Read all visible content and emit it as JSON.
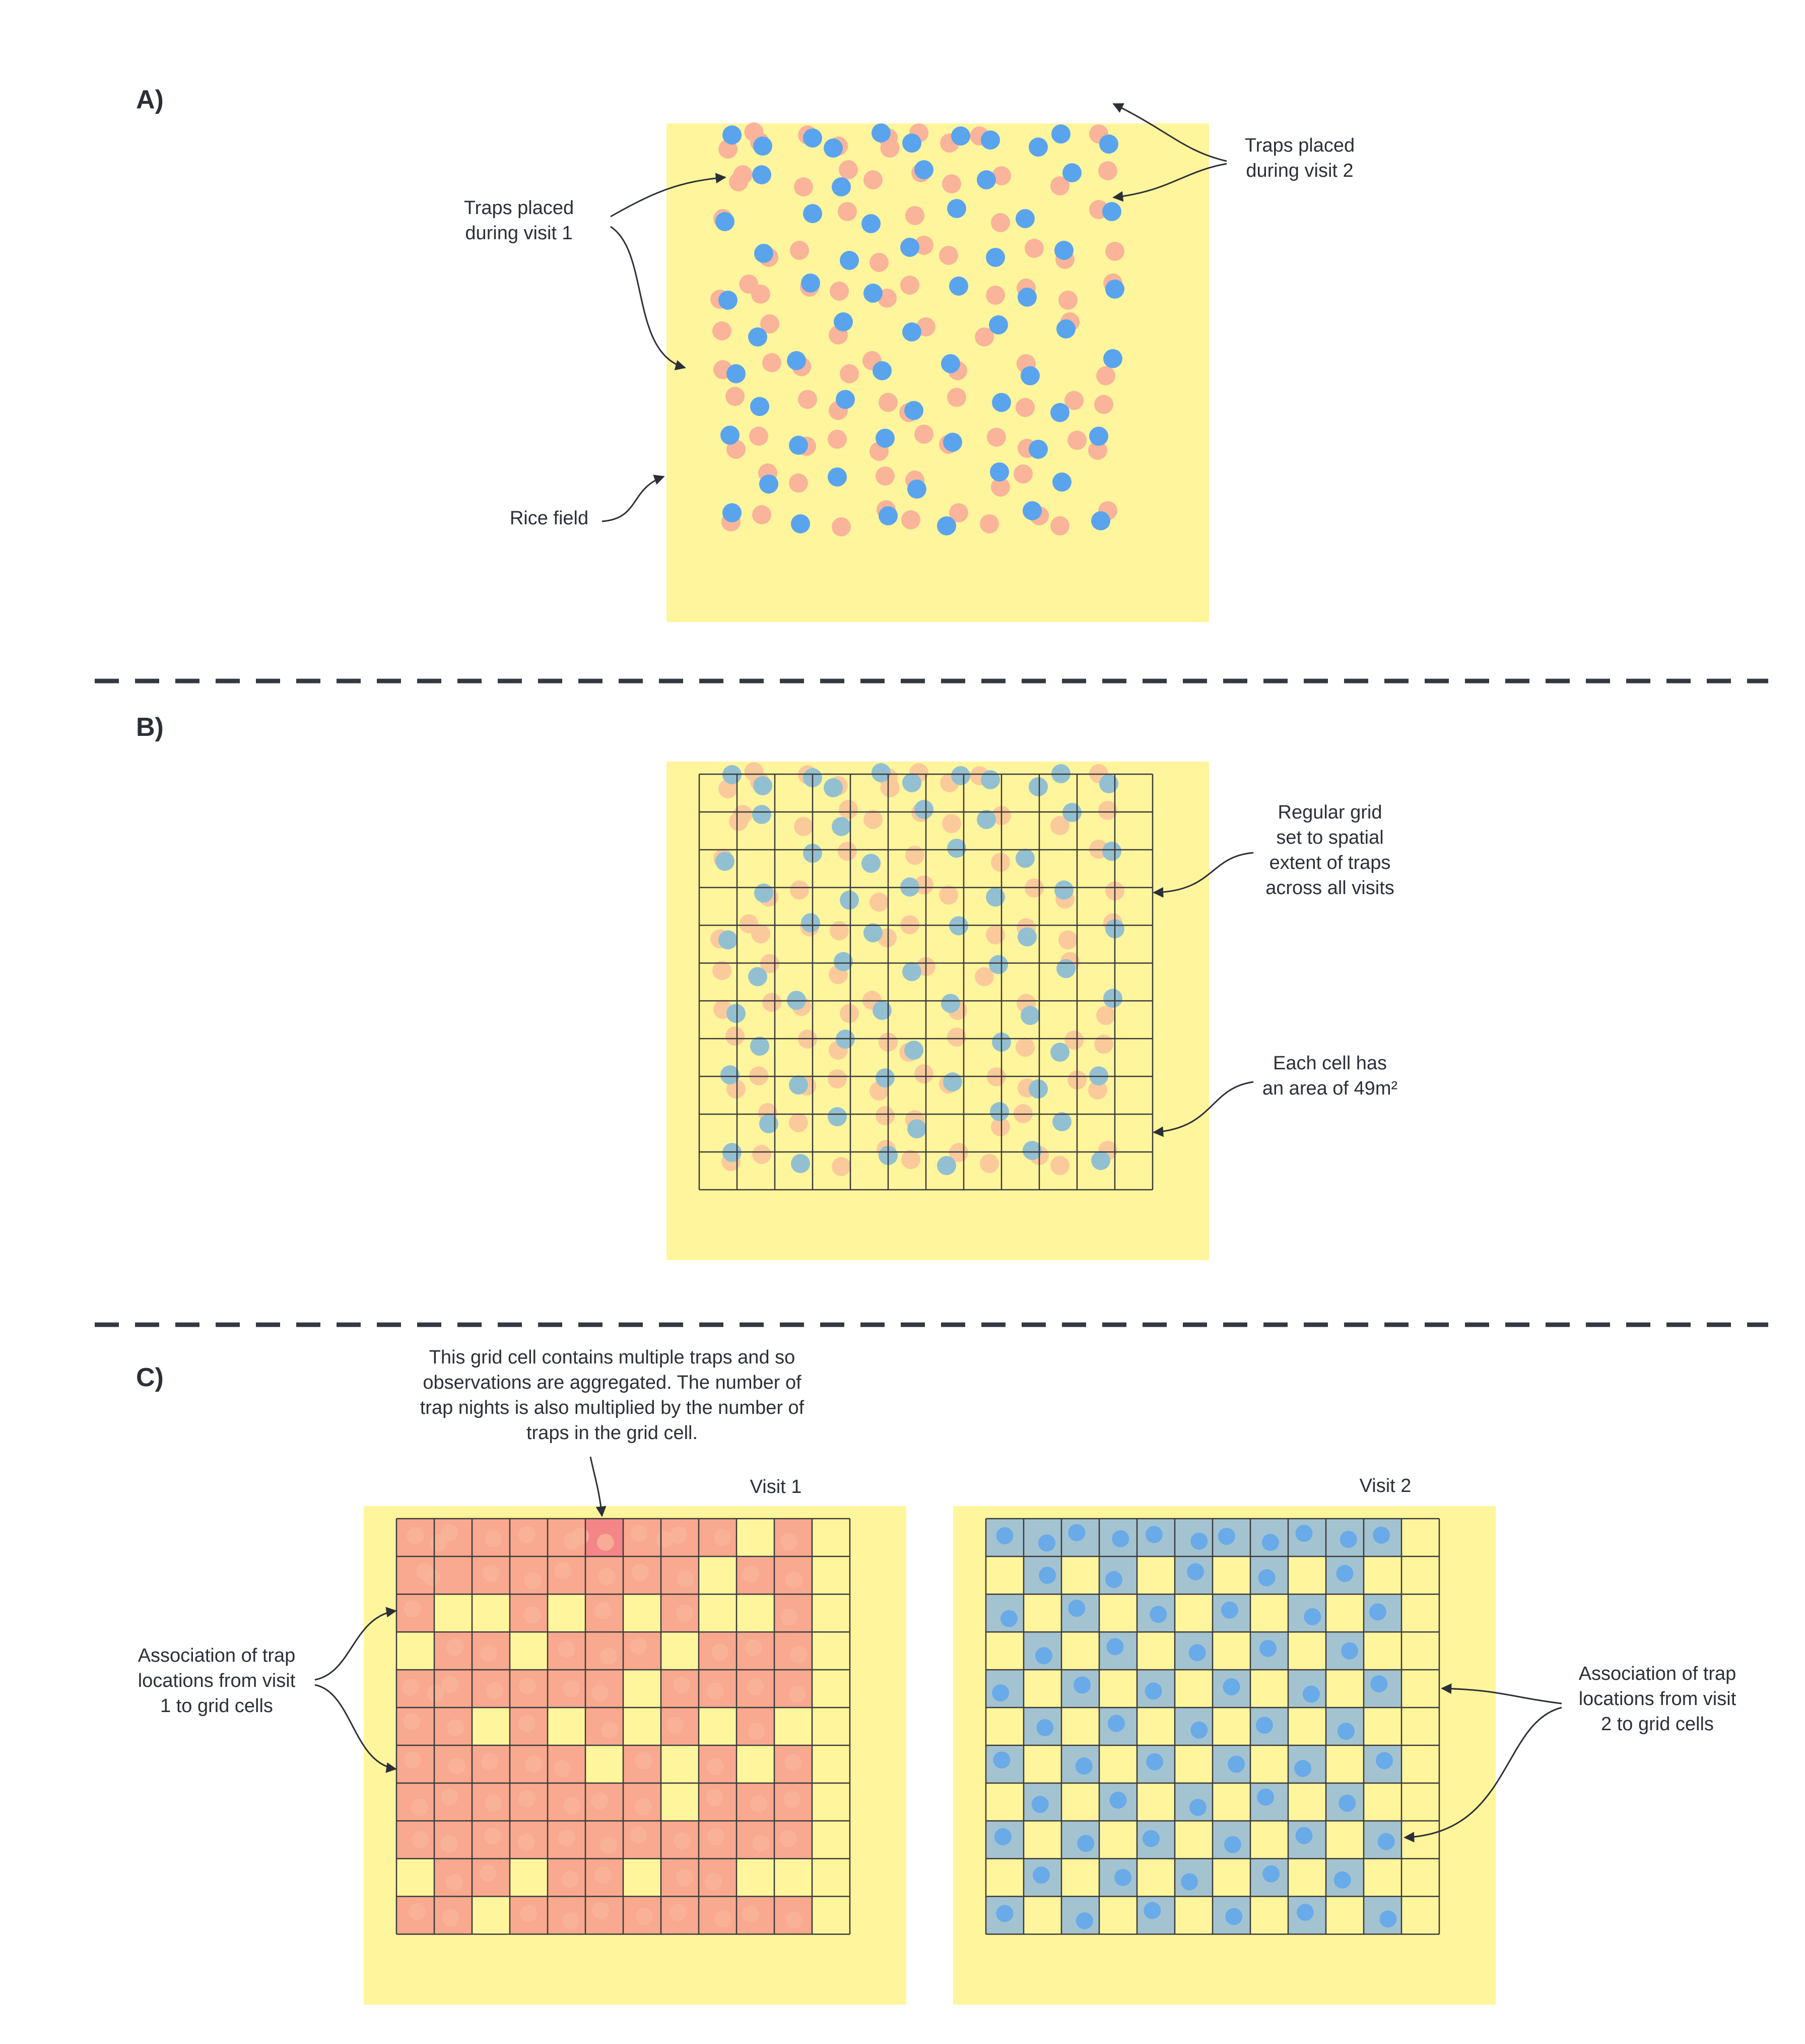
{
  "panels": {
    "a": {
      "label": "A)"
    },
    "b": {
      "label": "B)"
    },
    "c": {
      "label": "C)"
    }
  },
  "annotations": {
    "visit1_traps": [
      "Traps placed",
      "during visit 1"
    ],
    "visit2_traps": [
      "Traps placed",
      "during visit 2"
    ],
    "rice_field": [
      "Rice field"
    ],
    "regular_grid": [
      "Regular grid",
      "set to spatial",
      "extent of traps",
      "across all visits"
    ],
    "cell_area": [
      "Each cell has",
      "an area of 49m²"
    ],
    "aggregation": [
      "This grid cell contains multiple traps and so",
      "observations are aggregated. The number of",
      "trap nights is also multiplied by the number of",
      "traps in the grid cell."
    ],
    "assoc_visit1": [
      "Association of trap",
      "locations from visit",
      "1 to grid cells"
    ],
    "assoc_visit2": [
      "Association of trap",
      "locations from visit",
      "2 to grid cells"
    ]
  },
  "visit_titles": {
    "visit1": "Visit 1",
    "visit2": "Visit 2"
  },
  "colors": {
    "field": "#fff59d",
    "visit1_trap": "#f9b49a",
    "visit2_trap": "#5aa4ee",
    "visit1_cell": "#f8a98f",
    "visit1_cell_multi": "#f48687",
    "visit2_cell": "#a4c3d0",
    "grid_line": "#3a3a3a",
    "divider": "#343841",
    "text": "#2b2f38"
  },
  "traps": {
    "visit1": [
      [
        0,
        0
      ],
      [
        0.5,
        0
      ],
      [
        1,
        0
      ],
      [
        2,
        0
      ],
      [
        3,
        0
      ],
      [
        4,
        0
      ],
      [
        4.5,
        0
      ],
      [
        5,
        0
      ],
      [
        6,
        0
      ],
      [
        6.5,
        0
      ],
      [
        7,
        0
      ],
      [
        8,
        0
      ],
      [
        10,
        0
      ],
      [
        0.2,
        1
      ],
      [
        0.5,
        1
      ],
      [
        2,
        1
      ],
      [
        3,
        1
      ],
      [
        4,
        1
      ],
      [
        5,
        1
      ],
      [
        6,
        1
      ],
      [
        7,
        1
      ],
      [
        9,
        1
      ],
      [
        10,
        1
      ],
      [
        0,
        2
      ],
      [
        3,
        2
      ],
      [
        5,
        2
      ],
      [
        7,
        2
      ],
      [
        10,
        2
      ],
      [
        1,
        3
      ],
      [
        2,
        3
      ],
      [
        4,
        3
      ],
      [
        5,
        3
      ],
      [
        6,
        3
      ],
      [
        8,
        3
      ],
      [
        9,
        3
      ],
      [
        10,
        3
      ],
      [
        0,
        4
      ],
      [
        0.5,
        4
      ],
      [
        1,
        4
      ],
      [
        2,
        4
      ],
      [
        3,
        4
      ],
      [
        4,
        4
      ],
      [
        5,
        4
      ],
      [
        7,
        4
      ],
      [
        8,
        4
      ],
      [
        9,
        4
      ],
      [
        10,
        4
      ],
      [
        0,
        5
      ],
      [
        1,
        5
      ],
      [
        3,
        5
      ],
      [
        5,
        5
      ],
      [
        7,
        5
      ],
      [
        9,
        5
      ],
      [
        0,
        6
      ],
      [
        1,
        6
      ],
      [
        2,
        6
      ],
      [
        3,
        6
      ],
      [
        4,
        6
      ],
      [
        6,
        6
      ],
      [
        8,
        6
      ],
      [
        10,
        6
      ],
      [
        0,
        7
      ],
      [
        1,
        7
      ],
      [
        2,
        7
      ],
      [
        3,
        7
      ],
      [
        4,
        7
      ],
      [
        5,
        7
      ],
      [
        6,
        7
      ],
      [
        8,
        7
      ],
      [
        9,
        7
      ],
      [
        10,
        7
      ],
      [
        0,
        8
      ],
      [
        1,
        8
      ],
      [
        2,
        8
      ],
      [
        3,
        8
      ],
      [
        4,
        8
      ],
      [
        5,
        8
      ],
      [
        6,
        8
      ],
      [
        7,
        8
      ],
      [
        8,
        8
      ],
      [
        9,
        8
      ],
      [
        10,
        8
      ],
      [
        1,
        9
      ],
      [
        2,
        9
      ],
      [
        4,
        9
      ],
      [
        5,
        9
      ],
      [
        7,
        9
      ],
      [
        8,
        9
      ],
      [
        0,
        10
      ],
      [
        1,
        10
      ],
      [
        3,
        10
      ],
      [
        4,
        10
      ],
      [
        5,
        10
      ],
      [
        6,
        10
      ],
      [
        7,
        10
      ],
      [
        8,
        10
      ],
      [
        9,
        10
      ],
      [
        10,
        10
      ]
    ],
    "visit2": [
      [
        0,
        0
      ],
      [
        1,
        0
      ],
      [
        2,
        0
      ],
      [
        3,
        0
      ],
      [
        4,
        0
      ],
      [
        5,
        0
      ],
      [
        6,
        0
      ],
      [
        7,
        0
      ],
      [
        8,
        0
      ],
      [
        9,
        0
      ],
      [
        10,
        0
      ],
      [
        1,
        1
      ],
      [
        3,
        1
      ],
      [
        5,
        1
      ],
      [
        7,
        1
      ],
      [
        9,
        1
      ],
      [
        0,
        2
      ],
      [
        2,
        2
      ],
      [
        4,
        2
      ],
      [
        6,
        2
      ],
      [
        8,
        2
      ],
      [
        10,
        2
      ],
      [
        1,
        3
      ],
      [
        3,
        3
      ],
      [
        5,
        3
      ],
      [
        7,
        3
      ],
      [
        9,
        3
      ],
      [
        0,
        4
      ],
      [
        2,
        4
      ],
      [
        4,
        4
      ],
      [
        6,
        4
      ],
      [
        8,
        4
      ],
      [
        10,
        4
      ],
      [
        1,
        5
      ],
      [
        3,
        5
      ],
      [
        5,
        5
      ],
      [
        7,
        5
      ],
      [
        9,
        5
      ],
      [
        0,
        6
      ],
      [
        2,
        6
      ],
      [
        4,
        6
      ],
      [
        6,
        6
      ],
      [
        8,
        6
      ],
      [
        10,
        6
      ],
      [
        1,
        7
      ],
      [
        3,
        7
      ],
      [
        5,
        7
      ],
      [
        7,
        7
      ],
      [
        9,
        7
      ],
      [
        0,
        8
      ],
      [
        2,
        8
      ],
      [
        4,
        8
      ],
      [
        6,
        8
      ],
      [
        8,
        8
      ],
      [
        10,
        8
      ],
      [
        1,
        9
      ],
      [
        3,
        9
      ],
      [
        5,
        9
      ],
      [
        7,
        9
      ],
      [
        9,
        9
      ],
      [
        0,
        10
      ],
      [
        2,
        10
      ],
      [
        4,
        10
      ],
      [
        6,
        10
      ],
      [
        8,
        10
      ],
      [
        10,
        10
      ]
    ]
  }
}
